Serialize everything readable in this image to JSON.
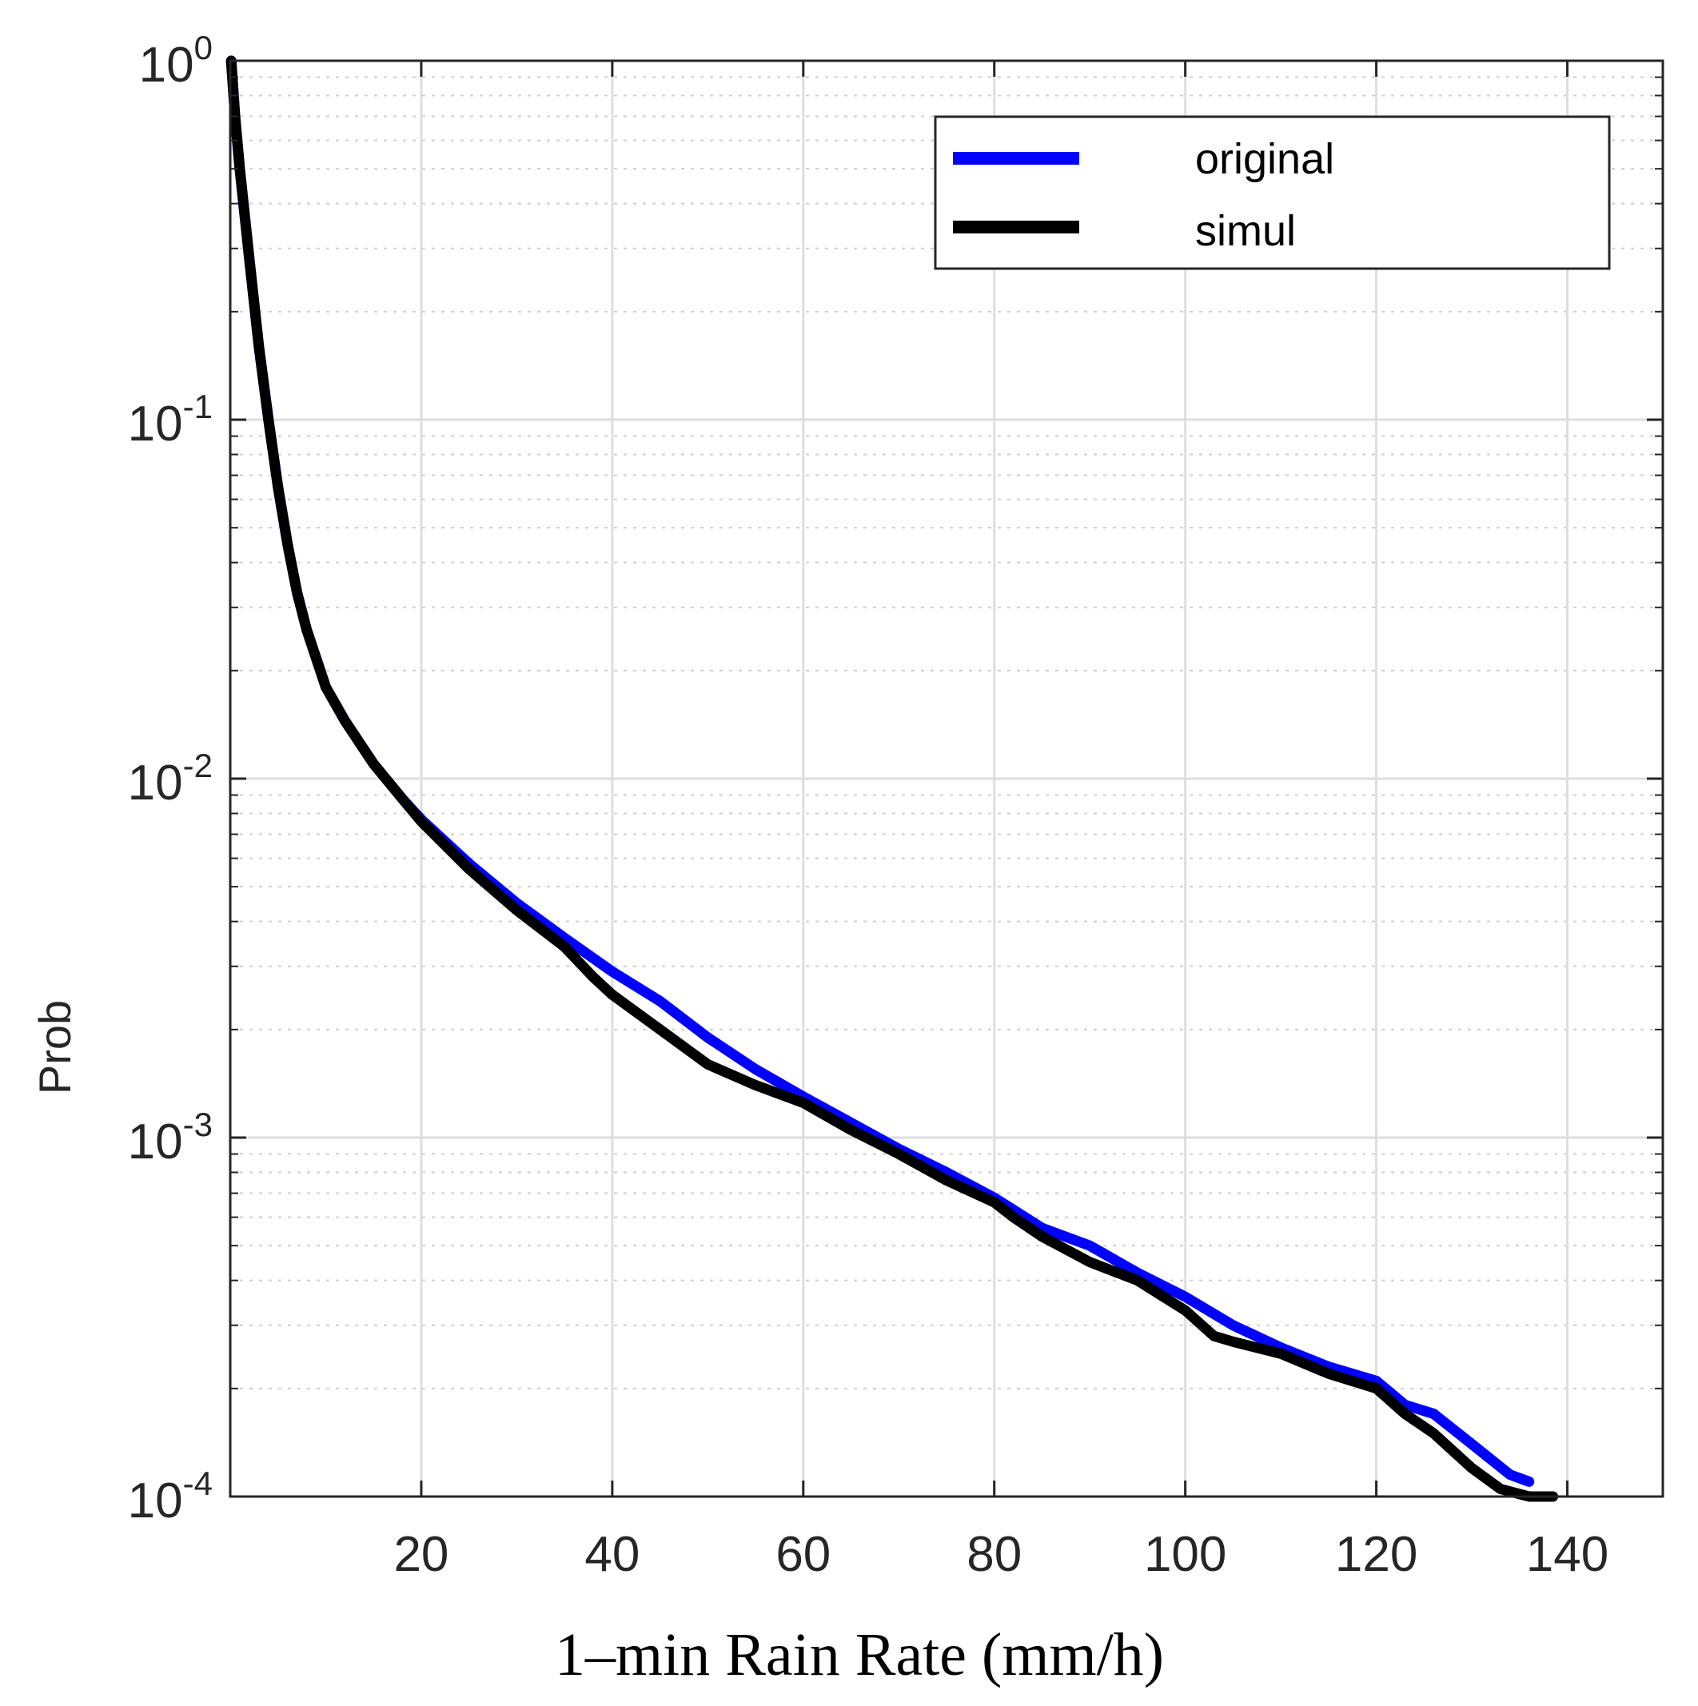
{
  "chart_data": {
    "type": "line",
    "xlabel": "1–min Rain Rate (mm/h)",
    "ylabel": "Prob",
    "xlim": [
      0,
      150
    ],
    "ylim": [
      0.0001,
      1
    ],
    "yscale": "log",
    "grid": true,
    "minor_grid": true,
    "legend_position": "top-right",
    "x_ticks": [
      20,
      40,
      60,
      80,
      100,
      120,
      140
    ],
    "x_tick_labels": [
      "20",
      "40",
      "60",
      "80",
      "100",
      "120",
      "140"
    ],
    "y_ticks": [
      {
        "value": 0.0001,
        "base": "10",
        "exp": "-4"
      },
      {
        "value": 0.001,
        "base": "10",
        "exp": "-3"
      },
      {
        "value": 0.01,
        "base": "10",
        "exp": "-2"
      },
      {
        "value": 0.1,
        "base": "10",
        "exp": "-1"
      },
      {
        "value": 1,
        "base": "10",
        "exp": "0"
      }
    ],
    "series": [
      {
        "name": "original",
        "color": "#0000ff",
        "points": [
          [
            0.1,
            1.0
          ],
          [
            0.5,
            0.7
          ],
          [
            1,
            0.5
          ],
          [
            2,
            0.28
          ],
          [
            3,
            0.16
          ],
          [
            4,
            0.1
          ],
          [
            5,
            0.065
          ],
          [
            6,
            0.045
          ],
          [
            7,
            0.033
          ],
          [
            8,
            0.026
          ],
          [
            10,
            0.018
          ],
          [
            12,
            0.0145
          ],
          [
            15,
            0.011
          ],
          [
            18,
            0.0088
          ],
          [
            20,
            0.0077
          ],
          [
            25,
            0.0058
          ],
          [
            30,
            0.0045
          ],
          [
            35,
            0.0036
          ],
          [
            40,
            0.0029
          ],
          [
            45,
            0.0024
          ],
          [
            50,
            0.0019
          ],
          [
            55,
            0.00155
          ],
          [
            60,
            0.0013
          ],
          [
            65,
            0.0011
          ],
          [
            70,
            0.00093
          ],
          [
            75,
            0.0008
          ],
          [
            80,
            0.00068
          ],
          [
            85,
            0.00056
          ],
          [
            90,
            0.0005
          ],
          [
            95,
            0.00042
          ],
          [
            100,
            0.00036
          ],
          [
            105,
            0.0003
          ],
          [
            110,
            0.00026
          ],
          [
            115,
            0.00023
          ],
          [
            120,
            0.00021
          ],
          [
            123,
            0.00018
          ],
          [
            126,
            0.00017
          ],
          [
            130,
            0.00014
          ],
          [
            134,
            0.000115
          ],
          [
            136,
            0.00011
          ]
        ]
      },
      {
        "name": "simul",
        "color": "#000000",
        "points": [
          [
            0.1,
            1.0
          ],
          [
            0.5,
            0.7
          ],
          [
            1,
            0.5
          ],
          [
            2,
            0.28
          ],
          [
            3,
            0.16
          ],
          [
            4,
            0.1
          ],
          [
            5,
            0.065
          ],
          [
            6,
            0.045
          ],
          [
            7,
            0.033
          ],
          [
            8,
            0.026
          ],
          [
            10,
            0.018
          ],
          [
            12,
            0.0145
          ],
          [
            15,
            0.011
          ],
          [
            18,
            0.0088
          ],
          [
            20,
            0.0076
          ],
          [
            25,
            0.0056
          ],
          [
            30,
            0.0043
          ],
          [
            35,
            0.0034
          ],
          [
            38,
            0.0028
          ],
          [
            40,
            0.0025
          ],
          [
            45,
            0.002
          ],
          [
            50,
            0.0016
          ],
          [
            55,
            0.0014
          ],
          [
            60,
            0.00125
          ],
          [
            65,
            0.00105
          ],
          [
            70,
            0.0009
          ],
          [
            75,
            0.00076
          ],
          [
            80,
            0.00066
          ],
          [
            82,
            0.0006
          ],
          [
            85,
            0.00053
          ],
          [
            90,
            0.00045
          ],
          [
            95,
            0.0004
          ],
          [
            100,
            0.00033
          ],
          [
            103,
            0.00028
          ],
          [
            105,
            0.00027
          ],
          [
            110,
            0.00025
          ],
          [
            115,
            0.00022
          ],
          [
            120,
            0.0002
          ],
          [
            123,
            0.00017
          ],
          [
            126,
            0.00015
          ],
          [
            130,
            0.00012
          ],
          [
            133,
            0.000105
          ],
          [
            136,
            0.0001
          ],
          [
            138.5,
            0.0001
          ]
        ]
      }
    ]
  }
}
